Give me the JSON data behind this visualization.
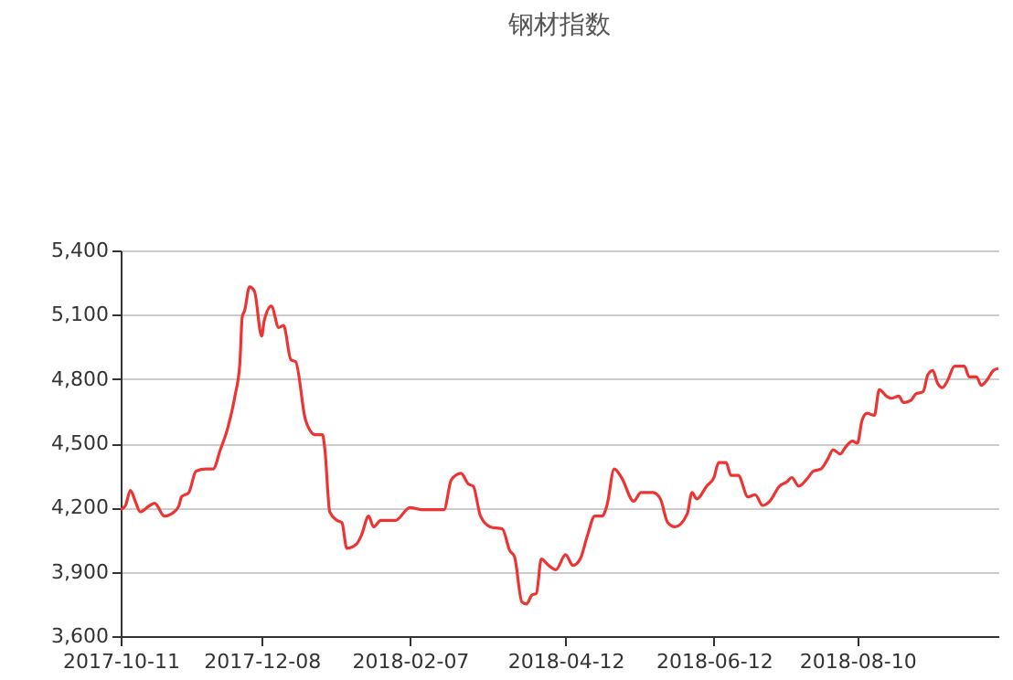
{
  "chart_data": {
    "type": "line",
    "title": "钢材指数",
    "x": [
      "2017-10-11",
      "2017-10-13",
      "2017-10-15",
      "2017-10-17",
      "2017-10-19",
      "2017-10-23",
      "2017-10-25",
      "2017-10-29",
      "2017-11-02",
      "2017-11-04",
      "2017-11-05",
      "2017-11-08",
      "2017-11-11",
      "2017-11-15",
      "2017-11-18",
      "2017-11-21",
      "2017-11-24",
      "2017-11-27",
      "2017-11-29",
      "2017-11-30",
      "2017-12-01",
      "2017-12-03",
      "2017-12-05",
      "2017-12-08",
      "2017-12-09",
      "2017-12-12",
      "2017-12-15",
      "2017-12-17",
      "2017-12-20",
      "2017-12-22",
      "2017-12-26",
      "2017-12-30",
      "2018-01-02",
      "2018-01-03",
      "2018-01-05",
      "2018-01-08",
      "2018-01-10",
      "2018-01-12",
      "2018-01-16",
      "2018-01-18",
      "2018-01-21",
      "2018-01-23",
      "2018-01-26",
      "2018-02-01",
      "2018-02-07",
      "2018-02-12",
      "2018-02-21",
      "2018-02-24",
      "2018-02-28",
      "2018-03-03",
      "2018-03-05",
      "2018-03-08",
      "2018-03-12",
      "2018-03-17",
      "2018-03-20",
      "2018-03-22",
      "2018-03-25",
      "2018-03-27",
      "2018-03-29",
      "2018-03-31",
      "2018-04-02",
      "2018-04-05",
      "2018-04-08",
      "2018-04-12",
      "2018-04-15",
      "2018-04-18",
      "2018-04-21",
      "2018-04-24",
      "2018-04-27",
      "2018-04-29",
      "2018-05-02",
      "2018-05-05",
      "2018-05-10",
      "2018-05-13",
      "2018-05-18",
      "2018-05-21",
      "2018-05-24",
      "2018-05-27",
      "2018-06-01",
      "2018-06-03",
      "2018-06-05",
      "2018-06-09",
      "2018-06-12",
      "2018-06-14",
      "2018-06-17",
      "2018-06-19",
      "2018-06-22",
      "2018-06-26",
      "2018-06-29",
      "2018-07-02",
      "2018-07-05",
      "2018-07-09",
      "2018-07-12",
      "2018-07-14",
      "2018-07-17",
      "2018-07-20",
      "2018-07-23",
      "2018-07-26",
      "2018-07-29",
      "2018-07-31",
      "2018-08-03",
      "2018-08-05",
      "2018-08-08",
      "2018-08-10",
      "2018-08-12",
      "2018-08-14",
      "2018-08-17",
      "2018-08-19",
      "2018-08-22",
      "2018-08-24",
      "2018-08-27",
      "2018-08-29",
      "2018-09-01",
      "2018-09-03",
      "2018-09-06",
      "2018-09-08",
      "2018-09-10",
      "2018-09-12",
      "2018-09-14",
      "2018-09-16",
      "2018-09-19",
      "2018-09-23",
      "2018-09-25",
      "2018-09-28",
      "2018-09-30",
      "2018-10-02",
      "2018-10-05",
      "2018-10-07"
    ],
    "series": [
      {
        "color": "#ee3333",
        "values": [
          4190,
          4210,
          4280,
          4230,
          4180,
          4210,
          4220,
          4160,
          4180,
          4210,
          4250,
          4270,
          4370,
          4380,
          4380,
          4470,
          4570,
          4720,
          4870,
          5090,
          5120,
          5230,
          5210,
          5000,
          5070,
          5140,
          5040,
          5050,
          4890,
          4880,
          4610,
          4540,
          4540,
          4470,
          4180,
          4140,
          4130,
          4010,
          4030,
          4070,
          4160,
          4110,
          4140,
          4140,
          4200,
          4190,
          4190,
          4330,
          4360,
          4310,
          4300,
          4160,
          4110,
          4100,
          4000,
          3970,
          3760,
          3750,
          3790,
          3800,
          3960,
          3930,
          3910,
          3980,
          3930,
          3960,
          4070,
          4160,
          4160,
          4210,
          4380,
          4340,
          4230,
          4270,
          4270,
          4240,
          4130,
          4110,
          4170,
          4270,
          4240,
          4300,
          4340,
          4410,
          4410,
          4350,
          4350,
          4250,
          4260,
          4210,
          4230,
          4300,
          4320,
          4340,
          4300,
          4330,
          4370,
          4380,
          4430,
          4470,
          4450,
          4480,
          4510,
          4500,
          4610,
          4640,
          4630,
          4750,
          4720,
          4710,
          4720,
          4690,
          4700,
          4730,
          4740,
          4820,
          4840,
          4780,
          4760,
          4790,
          4860,
          4860,
          4810,
          4810,
          4770,
          4790,
          4840,
          4850
        ]
      }
    ],
    "xlim": [
      "2017-10-11",
      "2018-10-07"
    ],
    "xticks": [
      "2017-10-11",
      "2017-12-08",
      "2018-02-07",
      "2018-04-12",
      "2018-06-12",
      "2018-08-10"
    ],
    "ylim": [
      3600,
      5400
    ],
    "yticks": [
      {
        "value": 3600,
        "label": "3,600"
      },
      {
        "value": 3900,
        "label": "3,900"
      },
      {
        "value": 4200,
        "label": "4,200"
      },
      {
        "value": 4500,
        "label": "4,500"
      },
      {
        "value": 4800,
        "label": "4,800"
      },
      {
        "value": 5100,
        "label": "5,100"
      },
      {
        "value": 5400,
        "label": "5,400"
      }
    ],
    "grid": "y",
    "legend": false,
    "marker": "none",
    "line_style": "solid"
  }
}
